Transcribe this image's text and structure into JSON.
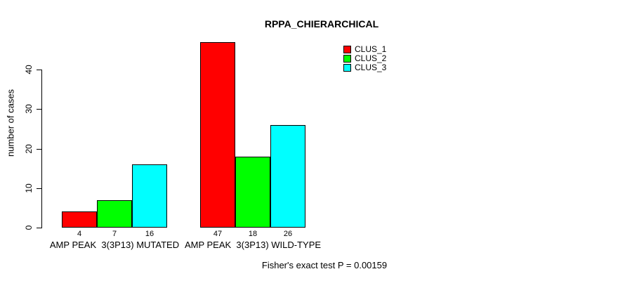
{
  "chart_data": {
    "type": "bar",
    "title": "RPPA_CHIERARCHICAL",
    "ylabel": "number of cases",
    "yticks": [
      0,
      10,
      20,
      30,
      40
    ],
    "ylim": [
      0,
      47
    ],
    "grid": false,
    "legend_position": "top-right",
    "categories": [
      "AMP PEAK  3(3P13) MUTATED",
      "AMP PEAK  3(3P13) WILD-TYPE"
    ],
    "series": [
      {
        "name": "CLUS_1",
        "color": "#FF0000",
        "values": [
          4,
          47
        ]
      },
      {
        "name": "CLUS_2",
        "color": "#00FF00",
        "values": [
          7,
          18
        ]
      },
      {
        "name": "CLUS_3",
        "color": "#00FFFF",
        "values": [
          16,
          26
        ]
      }
    ],
    "bar_value_labels": [
      [
        "4",
        "7",
        "16"
      ],
      [
        "47",
        "18",
        "26"
      ]
    ],
    "footnote": "Fisher's exact test P = 0.00159",
    "axis_color": "#000000",
    "background_color": "#FFFFFF"
  }
}
